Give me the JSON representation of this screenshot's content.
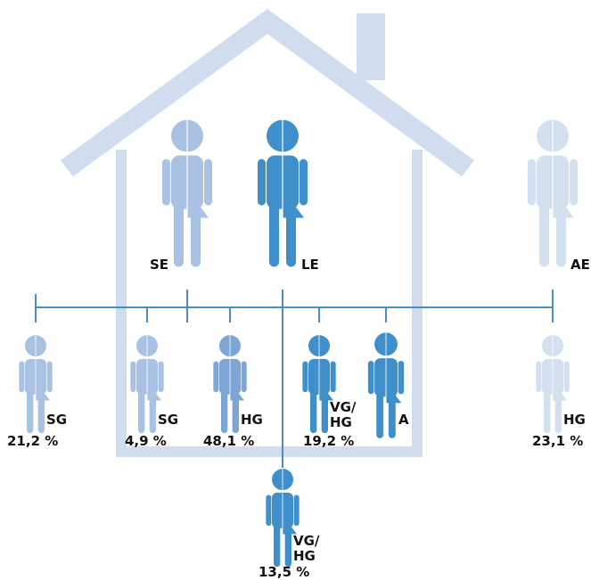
{
  "parents": [
    {
      "label": "SE"
    },
    {
      "label": "LE"
    },
    {
      "label": "AE"
    }
  ],
  "children": [
    {
      "label": [
        "SG"
      ],
      "share": "21,2 %"
    },
    {
      "label": [
        "SG"
      ],
      "share": "4,9 %"
    },
    {
      "label": [
        "HG"
      ],
      "share": "48,1 %"
    },
    {
      "label": [
        "VG/",
        "HG"
      ],
      "share": "19,2 %"
    },
    {
      "label": [
        "A"
      ]
    },
    {
      "label": [
        "HG"
      ],
      "share": "23,1 %"
    },
    {
      "label": [
        "VG/",
        "HG"
      ],
      "share": "13,5 %"
    }
  ]
}
